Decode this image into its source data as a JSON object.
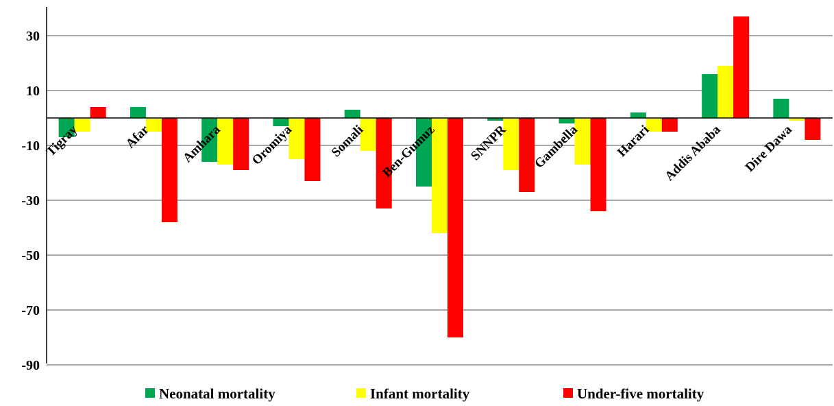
{
  "chart_data": {
    "type": "bar",
    "categories": [
      "Tigray",
      "Afar",
      "Amhara",
      "Oromiya",
      "Somali",
      "Ben-Gumuz",
      "SNNPR",
      "Gambella",
      "Harari",
      "Addis Ababa",
      "Dire Dawa"
    ],
    "series": [
      {
        "name": "Neonatal mortality",
        "color": "#00a651",
        "values": [
          -7,
          4,
          -16,
          -3,
          3,
          -25,
          -1,
          -2,
          2,
          16,
          7
        ]
      },
      {
        "name": "Infant mortality",
        "color": "#ffff00",
        "values": [
          -5,
          -5,
          -17,
          -15,
          -12,
          -42,
          -19,
          -17,
          -5,
          19,
          -1
        ]
      },
      {
        "name": "Under-five mortality",
        "color": "#ff0000",
        "values": [
          4,
          -38,
          -19,
          -23,
          -33,
          -80,
          -27,
          -34,
          -5,
          37,
          -8
        ]
      }
    ],
    "yticks": [
      30,
      10,
      -10,
      -30,
      -50,
      -70,
      -90
    ],
    "ylim": [
      -90,
      40
    ],
    "grid": true,
    "legend_position": "bottom"
  }
}
